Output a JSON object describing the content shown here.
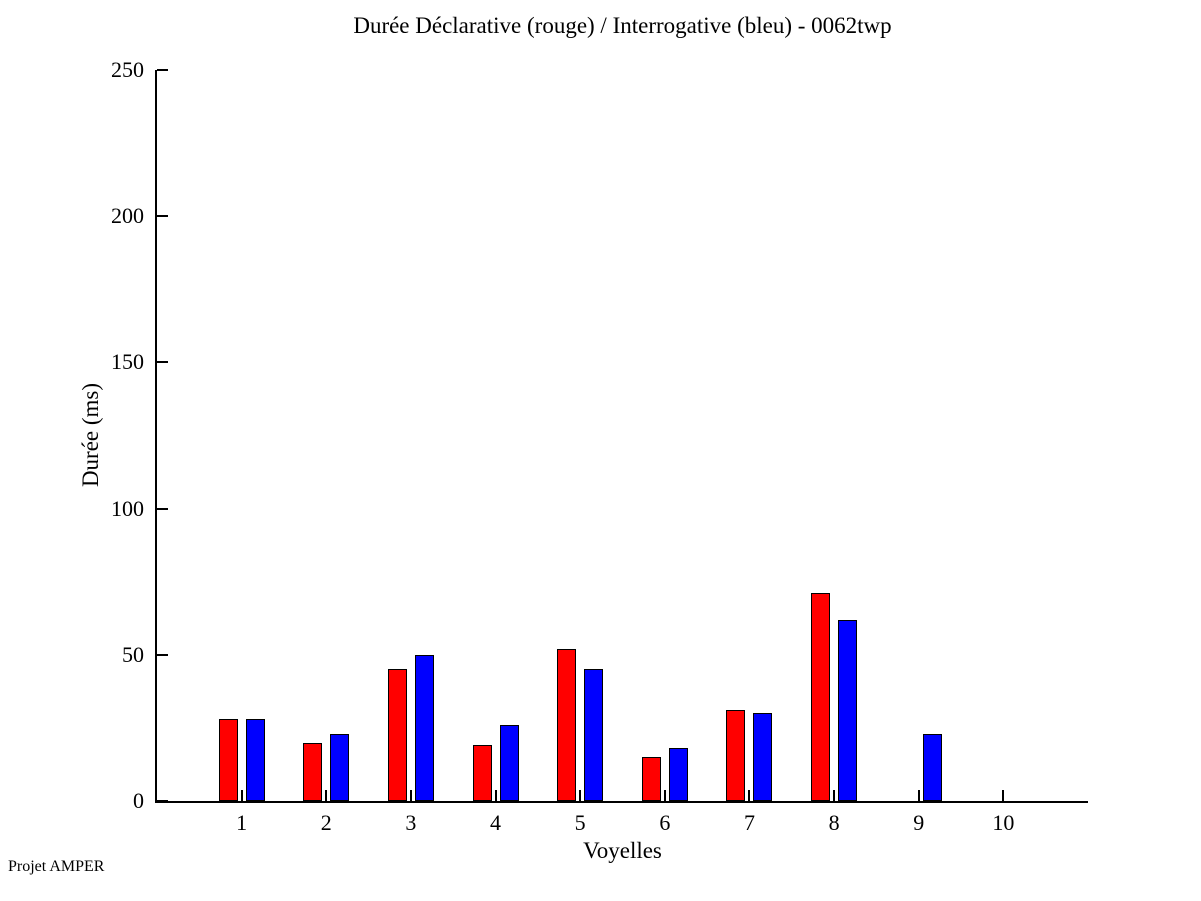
{
  "page": {
    "background": "#ffffff",
    "footer_note": "Projet AMPER"
  },
  "chart_data": {
    "type": "bar",
    "title": "Durée Déclarative (rouge) / Interrogative (bleu) - 0062twp",
    "xlabel": "Voyelles",
    "ylabel": "Durée (ms)",
    "categories": [
      1,
      2,
      3,
      4,
      5,
      6,
      7,
      8,
      9,
      10
    ],
    "series": [
      {
        "name": "Declarative",
        "color": "#ff0000",
        "values": [
          28,
          20,
          45,
          19,
          52,
          15,
          31,
          71,
          0,
          0
        ]
      },
      {
        "name": "Interrogative",
        "color": "#0000ff",
        "values": [
          28,
          23,
          50,
          26,
          45,
          18,
          30,
          62,
          23,
          0
        ]
      }
    ],
    "ylim": [
      0,
      250
    ],
    "yticks": [
      0,
      50,
      100,
      150,
      200,
      250
    ],
    "xlim": [
      0,
      11
    ],
    "grid": false,
    "legend_position": "none",
    "bar_outline_color": "#000000",
    "axis_color": "#000000"
  }
}
